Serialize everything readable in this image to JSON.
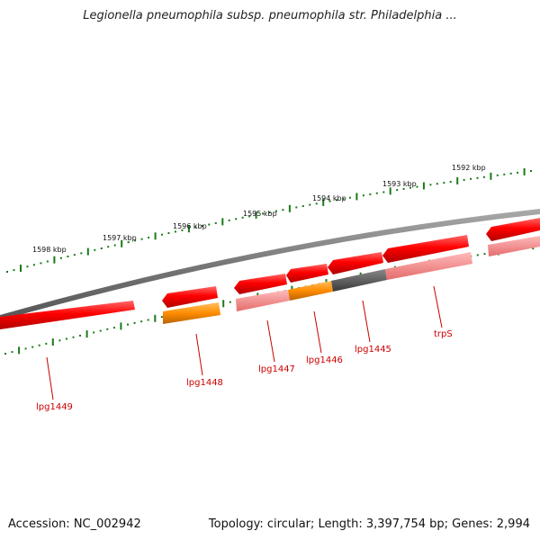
{
  "title": "Legionella pneumophila subsp. pneumophila str. Philadelphia ...",
  "footer": {
    "accession": "Accession: NC_002942",
    "summary": "Topology: circular; Length: 3,397,754 bp; Genes: 2,994"
  },
  "ruler_labels": [
    "1598 kbp",
    "1597 kbp",
    "1596 kbp",
    "1595 kbp",
    "1594 kbp",
    "1593 kbp",
    "1592 kbp"
  ],
  "gene_labels": [
    "lpg1449",
    "lpg1448",
    "lpg1447",
    "lpg1446",
    "lpg1445",
    "trpS"
  ],
  "colors": {
    "cds_forward": "#ff0000",
    "cds_reverse_shadow": "#f08080",
    "cds_orange": "#ff8c00",
    "cds_gray": "#555555",
    "backbone": "#808080",
    "tick": "#1a7a1a",
    "label": "#cc0000"
  }
}
